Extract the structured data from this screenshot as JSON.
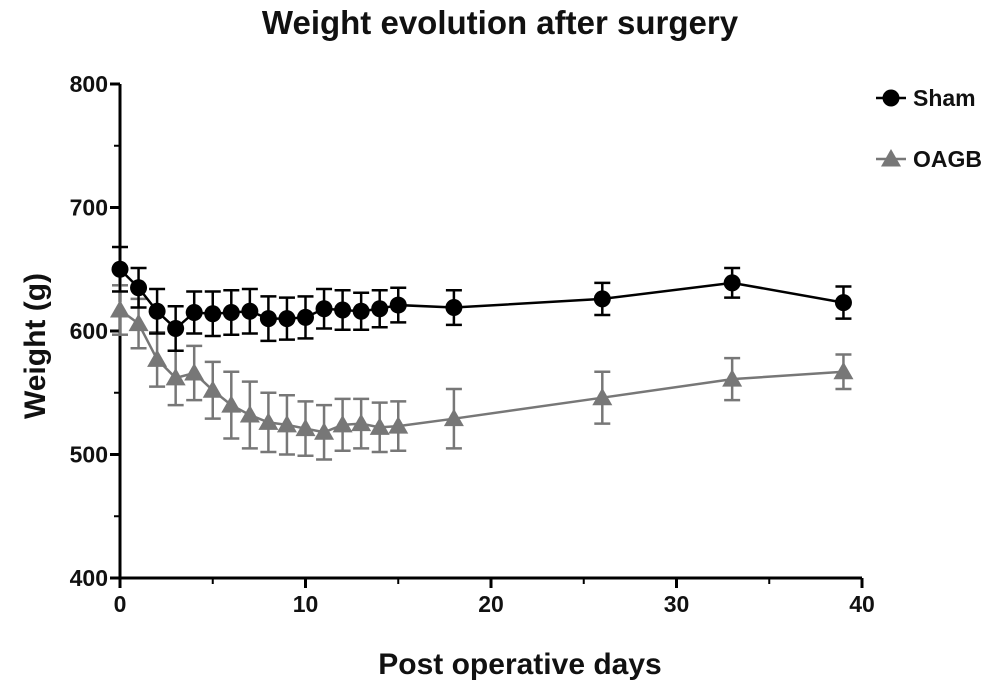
{
  "chart_data": {
    "type": "line",
    "title": "Weight evolution after surgery",
    "xlabel": "Post operative days",
    "ylabel": "Weight (g)",
    "xlim": [
      0,
      40
    ],
    "ylim": [
      400,
      800
    ],
    "xticks": [
      0,
      10,
      20,
      30,
      40
    ],
    "yticks": [
      400,
      500,
      600,
      700,
      800
    ],
    "legend_position": "top-right",
    "series": [
      {
        "name": "Sham",
        "marker": "circle",
        "color": "#000000",
        "x": [
          0,
          1,
          2,
          3,
          4,
          5,
          6,
          7,
          8,
          9,
          10,
          11,
          12,
          13,
          14,
          15,
          18,
          26,
          33,
          39
        ],
        "y": [
          650,
          635,
          616,
          602,
          615,
          614,
          615,
          616,
          610,
          610,
          611,
          618,
          617,
          616,
          618,
          621,
          619,
          626,
          639,
          623
        ],
        "err": [
          18,
          16,
          18,
          18,
          17,
          18,
          18,
          18,
          18,
          17,
          17,
          16,
          16,
          15,
          15,
          14,
          14,
          13,
          12,
          13
        ]
      },
      {
        "name": "OAGB",
        "marker": "triangle",
        "color": "#777777",
        "x": [
          0,
          1,
          2,
          3,
          4,
          5,
          6,
          7,
          8,
          9,
          10,
          11,
          12,
          13,
          14,
          15,
          18,
          26,
          33,
          39
        ],
        "y": [
          617,
          606,
          577,
          562,
          566,
          552,
          540,
          532,
          526,
          524,
          521,
          518,
          524,
          525,
          522,
          523,
          529,
          546,
          561,
          567
        ],
        "err": [
          20,
          20,
          22,
          22,
          22,
          23,
          27,
          27,
          24,
          24,
          22,
          22,
          21,
          20,
          20,
          20,
          24,
          21,
          17,
          14
        ]
      }
    ]
  }
}
